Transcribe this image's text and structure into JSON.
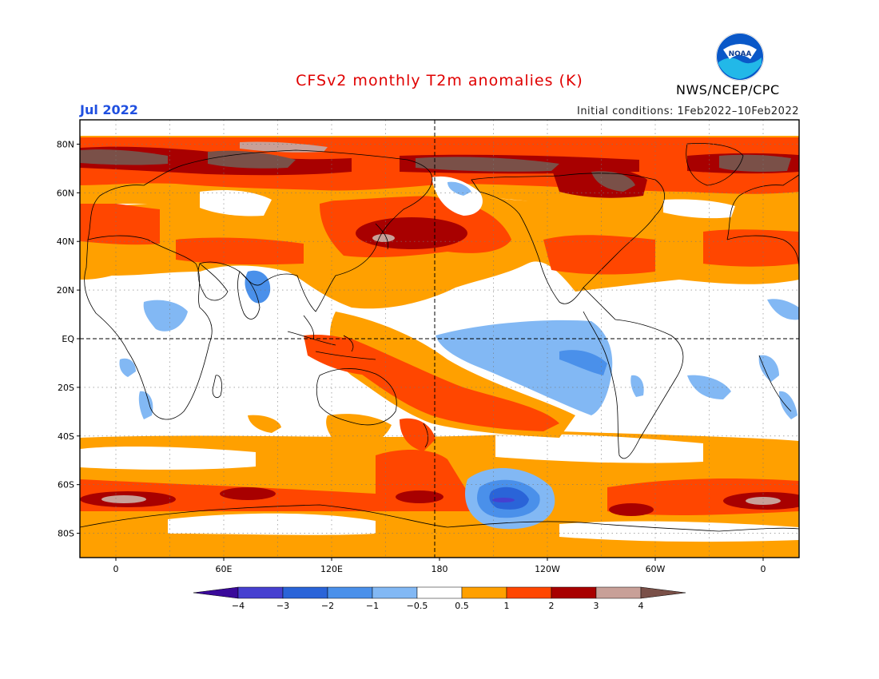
{
  "header": {
    "title": "CFSv2 monthly T2m anomalies (K)",
    "title_color": "#e00000",
    "valid_month": "Jul 2022",
    "valid_color": "#2050e0",
    "initial_conditions": "Initial conditions: 1Feb2022–10Feb2022",
    "agency": "NWS/NCEP/CPC",
    "logo_text": "NOAA"
  },
  "map": {
    "projection": "equirectangular",
    "lon_range": [
      -20,
      380
    ],
    "lat_range": [
      -90,
      90
    ],
    "lat_labels": [
      "80N",
      "60N",
      "40N",
      "20N",
      "EQ",
      "20S",
      "40S",
      "60S",
      "80S"
    ],
    "lon_labels": [
      "0",
      "60E",
      "120E",
      "180",
      "120W",
      "60W",
      "0"
    ]
  },
  "colorbar": {
    "colors": [
      "#3a0a9a",
      "#4640d0",
      "#2a64d8",
      "#4a90ea",
      "#82b8f4",
      "#ffffff",
      "#ffa000",
      "#ff4600",
      "#a80000",
      "#c8a098",
      "#7a5048"
    ],
    "labels": [
      "−4",
      "−3",
      "−2",
      "−1",
      "−0.5",
      "0.5",
      "1",
      "2",
      "3",
      "4"
    ]
  }
}
